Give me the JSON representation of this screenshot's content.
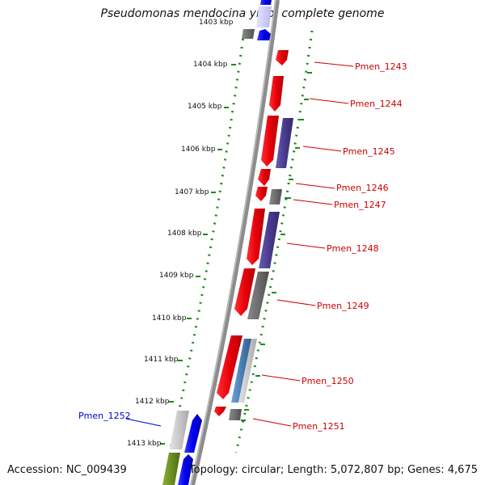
{
  "title": "Pseudomonas mendocina ymp, complete genome",
  "footer": {
    "accession": "Accession: NC_009439",
    "summary": "Topology: circular; Length: 5,072,807 bp; Genes: 4,675"
  },
  "ticks": [
    "1403 kbp",
    "1404 kbp",
    "1405 kbp",
    "1406 kbp",
    "1407 kbp",
    "1408 kbp",
    "1409 kbp",
    "1410 kbp",
    "1411 kbp",
    "1412 kbp",
    "1413 kbp"
  ],
  "gene_labels": [
    {
      "name": "Pmen_1243",
      "color": "#cc0000"
    },
    {
      "name": "Pmen_1244",
      "color": "#cc0000"
    },
    {
      "name": "Pmen_1245",
      "color": "#cc0000"
    },
    {
      "name": "Pmen_1246",
      "color": "#cc0000"
    },
    {
      "name": "Pmen_1247",
      "color": "#cc0000"
    },
    {
      "name": "Pmen_1248",
      "color": "#cc0000"
    },
    {
      "name": "Pmen_1249",
      "color": "#cc0000"
    },
    {
      "name": "Pmen_1250",
      "color": "#cc0000"
    },
    {
      "name": "Pmen_1251",
      "color": "#cc0000"
    },
    {
      "name": "Pmen_1252",
      "color": "#0000cc"
    }
  ],
  "colors": {
    "forward_cds": "#e8000a",
    "reverse_cds": "#0000ee",
    "cog_purple": "#4a3b8f",
    "cog_gray": "#6e6e6e",
    "cog_light": "#c8c8c8",
    "cog_steel": "#4c7fb5",
    "cog_olive": "#6b8e23",
    "backbone": "#8c8c8c",
    "dotted_ring": "#1d8a1d"
  }
}
